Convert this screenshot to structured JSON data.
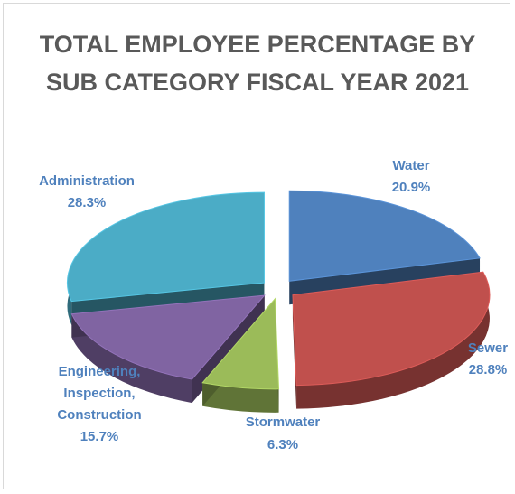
{
  "chart_data": {
    "type": "pie",
    "title_lines": [
      "TOTAL EMPLOYEE PERCENTAGE BY",
      "SUB CATEGORY  FISCAL YEAR 2021"
    ],
    "slices": [
      {
        "label": "Water",
        "value": 20.9,
        "value_label": "20.9%",
        "color": "#4F81BD",
        "label_color": "#4F81BD"
      },
      {
        "label": "Sewer",
        "value": 28.8,
        "value_label": "28.8%",
        "color": "#C0504D",
        "label_color": "#4F81BD"
      },
      {
        "label": "Stormwater",
        "value": 6.3,
        "value_label": "6.3%",
        "color": "#9BBB59",
        "label_color": "#4F81BD"
      },
      {
        "label": "Engineering, Inspection, Construction",
        "label_lines": [
          "Engineering,",
          "Inspection,",
          "Construction"
        ],
        "value": 15.7,
        "value_label": "15.7%",
        "color": "#8064A2",
        "label_color": "#4F81BD"
      },
      {
        "label": "Administration",
        "value": 28.3,
        "value_label": "28.3%",
        "color": "#4BACC6",
        "label_color": "#4F81BD"
      }
    ],
    "style": "3d exploded"
  }
}
